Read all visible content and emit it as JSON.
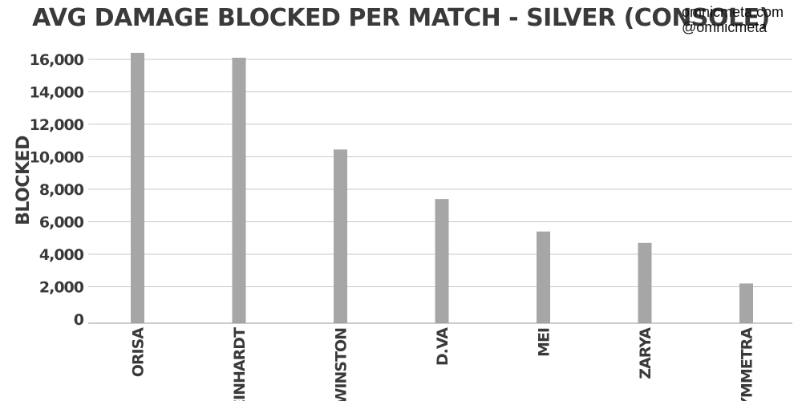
{
  "chart_data": {
    "type": "bar",
    "title": "AVG DAMAGE BLOCKED PER MATCH - SILVER (CONSOLE)",
    "ylabel": "BLOCKED",
    "xlabel": "",
    "categories": [
      "ORISA",
      "REINHARDT",
      "WINSTON",
      "D.VA",
      "MEI",
      "ZARYA",
      "SYMMETRA"
    ],
    "values": [
      16400,
      16100,
      10450,
      7400,
      5400,
      4700,
      2200
    ],
    "ylim": [
      0,
      16000
    ],
    "yticks": [
      0,
      2000,
      4000,
      6000,
      8000,
      10000,
      12000,
      14000,
      16000
    ],
    "ytick_labels": [
      "0",
      "2,000",
      "4,000",
      "6,000",
      "8,000",
      "10,000",
      "12,000",
      "14,000",
      "16,000"
    ],
    "grid": true,
    "bar_color": "#a6a6a6"
  },
  "credits": {
    "site": "omnicmeta.com",
    "handle": "@omnicmeta"
  }
}
